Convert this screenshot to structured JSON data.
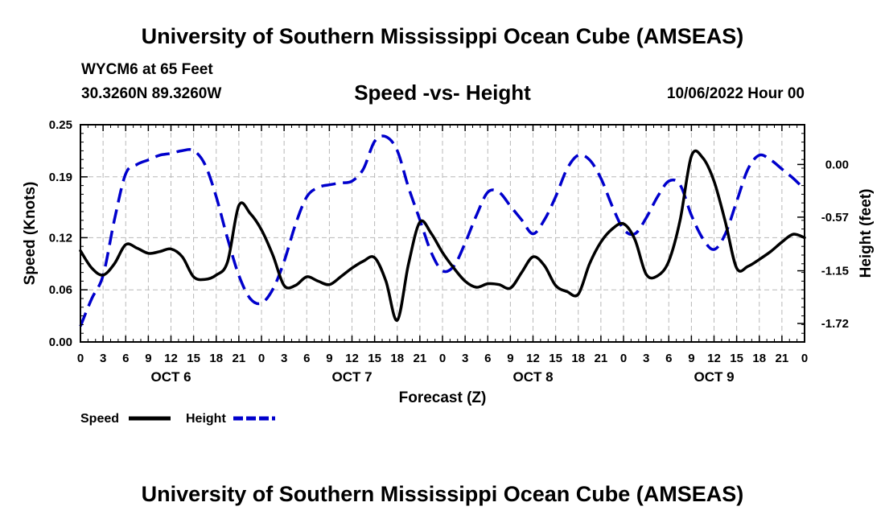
{
  "header": {
    "title": "University of Southern Mississippi Ocean Cube (AMSEAS)",
    "station": "WYCM6 at 65 Feet",
    "location": "30.3260N  89.3260W",
    "subtitle": "Speed -vs- Height",
    "datetime": "10/06/2022 Hour 00"
  },
  "footer": {
    "title": "University of Southern Mississippi Ocean Cube (AMSEAS)"
  },
  "chart_data": {
    "type": "line",
    "title": "Speed -vs- Height",
    "xlabel": "Forecast (Z)",
    "ylabel": "Speed (Knots)",
    "y2label": "Height (feet)",
    "grid": true,
    "x_unit": "hours from 10/06 00Z",
    "xlim": [
      0,
      96
    ],
    "ylim": [
      0,
      0.25
    ],
    "y2lim": [
      -1.92,
      0.43
    ],
    "x_ticks": [
      0,
      3,
      6,
      9,
      12,
      15,
      18,
      21,
      24,
      27,
      30,
      33,
      36,
      39,
      42,
      45,
      48,
      51,
      54,
      57,
      60,
      63,
      66,
      69,
      72,
      75,
      78,
      81,
      84,
      87,
      90,
      93,
      96
    ],
    "x_tick_labels": [
      "0",
      "3",
      "6",
      "9",
      "12",
      "15",
      "18",
      "21",
      "0",
      "3",
      "6",
      "9",
      "12",
      "15",
      "18",
      "21",
      "0",
      "3",
      "6",
      "9",
      "12",
      "15",
      "18",
      "21",
      "0",
      "3",
      "6",
      "9",
      "12",
      "15",
      "18",
      "21",
      "0"
    ],
    "day_labels": [
      {
        "label": "OCT 6",
        "hour": 12
      },
      {
        "label": "OCT 7",
        "hour": 36
      },
      {
        "label": "OCT 8",
        "hour": 60
      },
      {
        "label": "OCT 9",
        "hour": 84
      }
    ],
    "y_ticks": [
      0.0,
      0.06,
      0.12,
      0.19,
      0.25
    ],
    "y_tick_labels": [
      "0.00",
      "0.06",
      "0.12",
      "0.19",
      "0.25"
    ],
    "y2_ticks": [
      0.0,
      -0.57,
      -1.15,
      -1.72
    ],
    "y2_tick_labels": [
      "0.00",
      "-0.57",
      "-1.15",
      "-1.72"
    ],
    "series": [
      {
        "name": "Speed",
        "axis": "left",
        "color": "#000000",
        "dash": "solid",
        "points": [
          [
            0,
            0.105
          ],
          [
            1.5,
            0.085
          ],
          [
            3,
            0.077
          ],
          [
            4.5,
            0.09
          ],
          [
            6,
            0.112
          ],
          [
            7.5,
            0.108
          ],
          [
            9,
            0.102
          ],
          [
            10.5,
            0.104
          ],
          [
            12,
            0.107
          ],
          [
            13.5,
            0.098
          ],
          [
            15,
            0.075
          ],
          [
            16.5,
            0.072
          ],
          [
            18,
            0.077
          ],
          [
            19.5,
            0.092
          ],
          [
            21,
            0.157
          ],
          [
            22.5,
            0.148
          ],
          [
            24,
            0.129
          ],
          [
            25.5,
            0.1
          ],
          [
            27,
            0.065
          ],
          [
            28.5,
            0.065
          ],
          [
            30,
            0.075
          ],
          [
            31.5,
            0.07
          ],
          [
            33,
            0.066
          ],
          [
            34.5,
            0.075
          ],
          [
            36,
            0.085
          ],
          [
            37.5,
            0.093
          ],
          [
            39,
            0.097
          ],
          [
            40.5,
            0.07
          ],
          [
            42,
            0.025
          ],
          [
            43.5,
            0.09
          ],
          [
            45,
            0.138
          ],
          [
            46.5,
            0.125
          ],
          [
            48,
            0.103
          ],
          [
            49.5,
            0.085
          ],
          [
            51,
            0.07
          ],
          [
            52.5,
            0.063
          ],
          [
            54,
            0.067
          ],
          [
            55.5,
            0.066
          ],
          [
            57,
            0.062
          ],
          [
            58.5,
            0.08
          ],
          [
            60,
            0.098
          ],
          [
            61.5,
            0.088
          ],
          [
            63,
            0.065
          ],
          [
            64.5,
            0.058
          ],
          [
            66,
            0.055
          ],
          [
            67.5,
            0.09
          ],
          [
            69,
            0.115
          ],
          [
            70.5,
            0.13
          ],
          [
            72,
            0.136
          ],
          [
            73.5,
            0.118
          ],
          [
            75,
            0.078
          ],
          [
            76.5,
            0.076
          ],
          [
            78,
            0.093
          ],
          [
            79.5,
            0.14
          ],
          [
            81,
            0.214
          ],
          [
            82.5,
            0.212
          ],
          [
            84,
            0.185
          ],
          [
            85.5,
            0.138
          ],
          [
            87,
            0.085
          ],
          [
            88.5,
            0.087
          ],
          [
            90,
            0.095
          ],
          [
            91.5,
            0.104
          ],
          [
            93,
            0.115
          ],
          [
            94.5,
            0.124
          ],
          [
            96,
            0.12
          ]
        ]
      },
      {
        "name": "Height",
        "axis": "right",
        "color": "#0000cc",
        "dash": "dashed",
        "points": [
          [
            0,
            -1.75
          ],
          [
            1.5,
            -1.45
          ],
          [
            3,
            -1.2
          ],
          [
            4.5,
            -0.6
          ],
          [
            6,
            -0.1
          ],
          [
            7.5,
            0.0
          ],
          [
            9,
            0.05
          ],
          [
            10.5,
            0.1
          ],
          [
            12,
            0.12
          ],
          [
            13.5,
            0.15
          ],
          [
            15,
            0.15
          ],
          [
            16.5,
            0.0
          ],
          [
            18,
            -0.35
          ],
          [
            19.5,
            -0.8
          ],
          [
            21,
            -1.2
          ],
          [
            22.5,
            -1.45
          ],
          [
            24,
            -1.5
          ],
          [
            25.5,
            -1.35
          ],
          [
            27,
            -1.05
          ],
          [
            28.5,
            -0.65
          ],
          [
            30,
            -0.35
          ],
          [
            31.5,
            -0.25
          ],
          [
            33,
            -0.22
          ],
          [
            34.5,
            -0.2
          ],
          [
            36,
            -0.18
          ],
          [
            37.5,
            -0.05
          ],
          [
            39,
            0.25
          ],
          [
            40.5,
            0.3
          ],
          [
            42,
            0.15
          ],
          [
            43.5,
            -0.25
          ],
          [
            45,
            -0.6
          ],
          [
            46.5,
            -0.95
          ],
          [
            48,
            -1.15
          ],
          [
            49.5,
            -1.1
          ],
          [
            51,
            -0.85
          ],
          [
            52.5,
            -0.55
          ],
          [
            54,
            -0.3
          ],
          [
            55.5,
            -0.3
          ],
          [
            57,
            -0.45
          ],
          [
            58.5,
            -0.6
          ],
          [
            60,
            -0.75
          ],
          [
            61.5,
            -0.6
          ],
          [
            63,
            -0.35
          ],
          [
            64.5,
            -0.05
          ],
          [
            66,
            0.1
          ],
          [
            67.5,
            0.05
          ],
          [
            69,
            -0.15
          ],
          [
            70.5,
            -0.45
          ],
          [
            72,
            -0.7
          ],
          [
            73.5,
            -0.75
          ],
          [
            75,
            -0.58
          ],
          [
            76.5,
            -0.35
          ],
          [
            78,
            -0.18
          ],
          [
            79.5,
            -0.22
          ],
          [
            81,
            -0.55
          ],
          [
            82.5,
            -0.8
          ],
          [
            84,
            -0.92
          ],
          [
            85.5,
            -0.75
          ],
          [
            87,
            -0.4
          ],
          [
            88.5,
            -0.05
          ],
          [
            90,
            0.1
          ],
          [
            91.5,
            0.05
          ],
          [
            93,
            -0.05
          ],
          [
            94.5,
            -0.15
          ],
          [
            96,
            -0.27
          ]
        ]
      }
    ],
    "legend": [
      {
        "label": "Speed",
        "color": "#000000",
        "dash": "solid"
      },
      {
        "label": "Height",
        "color": "#0000cc",
        "dash": "dashed"
      }
    ]
  }
}
